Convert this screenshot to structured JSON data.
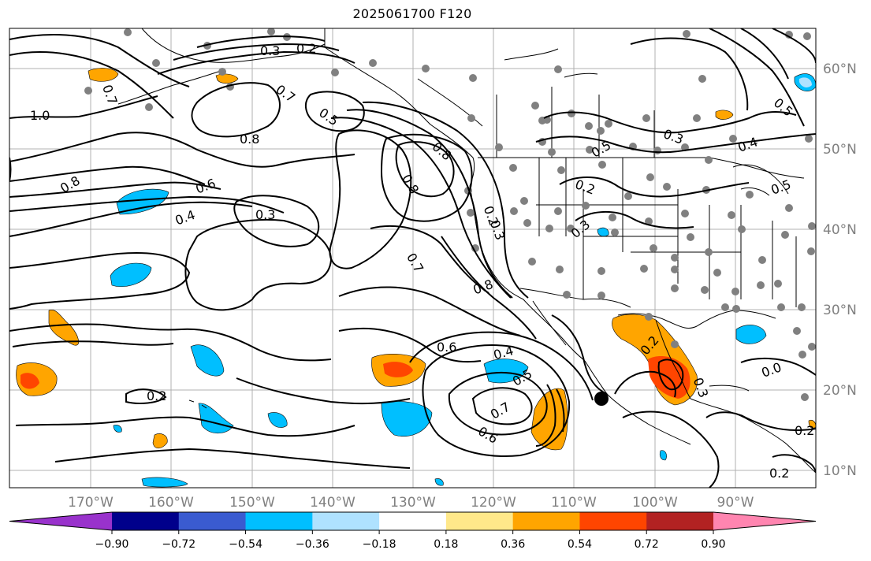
{
  "title": "2025061700 F120",
  "longitude_labels": [
    "170°W",
    "160°W",
    "150°W",
    "140°W",
    "130°W",
    "120°W",
    "110°W",
    "100°W",
    "90°W"
  ],
  "latitude_labels": [
    "60°N",
    "50°N",
    "40°N",
    "30°N",
    "20°N",
    "10°N"
  ],
  "contour_labels": [
    "1.0",
    "0.7",
    "0.3",
    "0.2",
    "0.7",
    "0.5",
    "0.8",
    "0.8",
    "0.6",
    "0.4",
    "0.3",
    "0.8",
    "0.8",
    "0.2",
    "0.3",
    "0.7",
    "0.8",
    "0.6",
    "0.4",
    "0.5",
    "0.7",
    "0.6",
    "0.2",
    "0.5",
    "0.3",
    "0.5",
    "0.4",
    "0.5",
    "0.2",
    "0.3",
    "0.0",
    "0.2",
    "0.2",
    "0.2"
  ],
  "colorbar": {
    "colors": [
      "#9932cc",
      "#00008b",
      "#3a5bd0",
      "#00bfff",
      "#afe2ff",
      "#ffffff",
      "#ffe88a",
      "#ffa500",
      "#ff4500",
      "#b22222",
      "#ff85b0"
    ],
    "tick_labels": [
      "−0.90",
      "−0.72",
      "−0.54",
      "−0.36",
      "−0.18",
      "0.18",
      "0.36",
      "0.54",
      "0.72",
      "0.90"
    ]
  }
}
